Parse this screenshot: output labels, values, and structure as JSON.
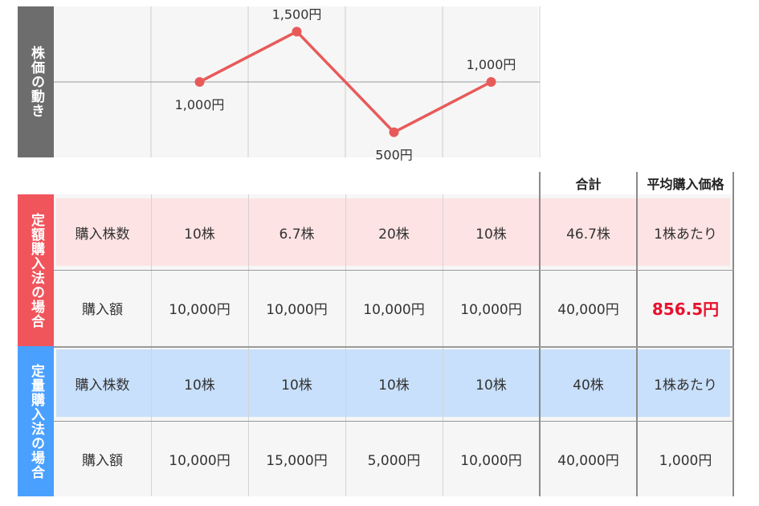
{
  "chart": {
    "side_label": "株価の動き"
  },
  "chart_data": {
    "type": "line",
    "x": [
      2,
      3,
      4,
      5
    ],
    "values": [
      1000,
      1500,
      500,
      1000
    ],
    "data_labels": [
      "1,000円",
      "1,500円",
      "500円",
      "1,000円"
    ],
    "ylim": [
      250,
      1750
    ],
    "grid": true,
    "colors": {
      "line": "#e85a5a",
      "point": "#e85a5a"
    }
  },
  "table": {
    "headers": {
      "total": "合計",
      "avg": "平均購入価格"
    },
    "teigaku": {
      "side_label": "定額購入法の場合",
      "rows": [
        [
          "購入株数",
          "10株",
          "6.7株",
          "20株",
          "10株",
          "46.7株",
          "1株あたり"
        ],
        [
          "購入額",
          "10,000円",
          "10,000円",
          "10,000円",
          "10,000円",
          "40,000円",
          "856.5円"
        ]
      ]
    },
    "teiryo": {
      "side_label": "定量購入法の場合",
      "rows": [
        [
          "購入株数",
          "10株",
          "10株",
          "10株",
          "10株",
          "40株",
          "1株あたり"
        ],
        [
          "購入額",
          "10,000円",
          "15,000円",
          "5,000円",
          "10,000円",
          "40,000円",
          "1,000円"
        ]
      ]
    }
  },
  "colors": {
    "dark_label": "#6d6d6d",
    "red_label": "#f0555c",
    "blue_label": "#4aa0ff",
    "pink_band": "#fde3e3",
    "blue_band": "#c8e0fb",
    "gray_bg": "#f6f6f6"
  }
}
